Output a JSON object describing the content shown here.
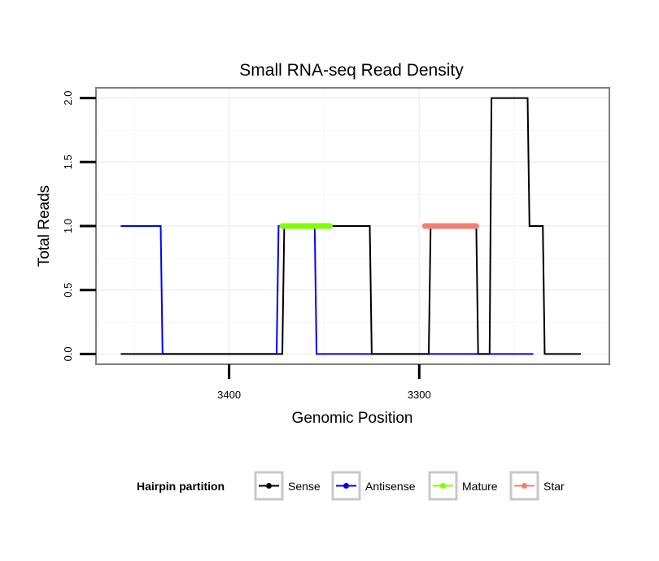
{
  "chart_data": {
    "type": "line",
    "title": "Small RNA-seq Read Density",
    "xlabel": "Genomic Position",
    "ylabel": "Total Reads",
    "x_reversed": true,
    "xlim": [
      3470,
      3200
    ],
    "ylim": [
      -0.08,
      2.08
    ],
    "x_ticks": [
      3400,
      3300
    ],
    "x_tick_labels": [
      "3400",
      "3300"
    ],
    "y_ticks": [
      0,
      0.5,
      1,
      1.5,
      2
    ],
    "y_tick_labels": [
      "0.0",
      "0.5",
      "1.0",
      "1.5",
      "2.0"
    ],
    "grid": true,
    "legend": {
      "title": "Hairpin partition",
      "position": "bottom",
      "entries": [
        "Sense",
        "Antisense",
        "Mature",
        "Star"
      ]
    },
    "series": [
      {
        "name": "Antisense",
        "color": "#0000ff",
        "x": [
          3457,
          3436,
          3435,
          3375,
          3374,
          3355,
          3354,
          3328,
          3327,
          3240
        ],
        "y": [
          1,
          1,
          0,
          0,
          1,
          1,
          0,
          0,
          0,
          0
        ]
      },
      {
        "name": "Sense",
        "color": "#000000",
        "x": [
          3457,
          3372,
          3371,
          3355,
          3354,
          3326,
          3325,
          3295,
          3294,
          3270,
          3269,
          3263,
          3262,
          3243,
          3242,
          3235,
          3234,
          3215
        ],
        "y": [
          0,
          0,
          1,
          1,
          1,
          1,
          0,
          0,
          1,
          1,
          0,
          0,
          2,
          2,
          1,
          1,
          0,
          0
        ]
      },
      {
        "name": "Mature",
        "color": "#7fff00",
        "x": [
          3372,
          3347
        ],
        "y": [
          1,
          1
        ]
      },
      {
        "name": "Star",
        "color": "#f08070",
        "x": [
          3297,
          3270
        ],
        "y": [
          1,
          1
        ]
      }
    ]
  }
}
